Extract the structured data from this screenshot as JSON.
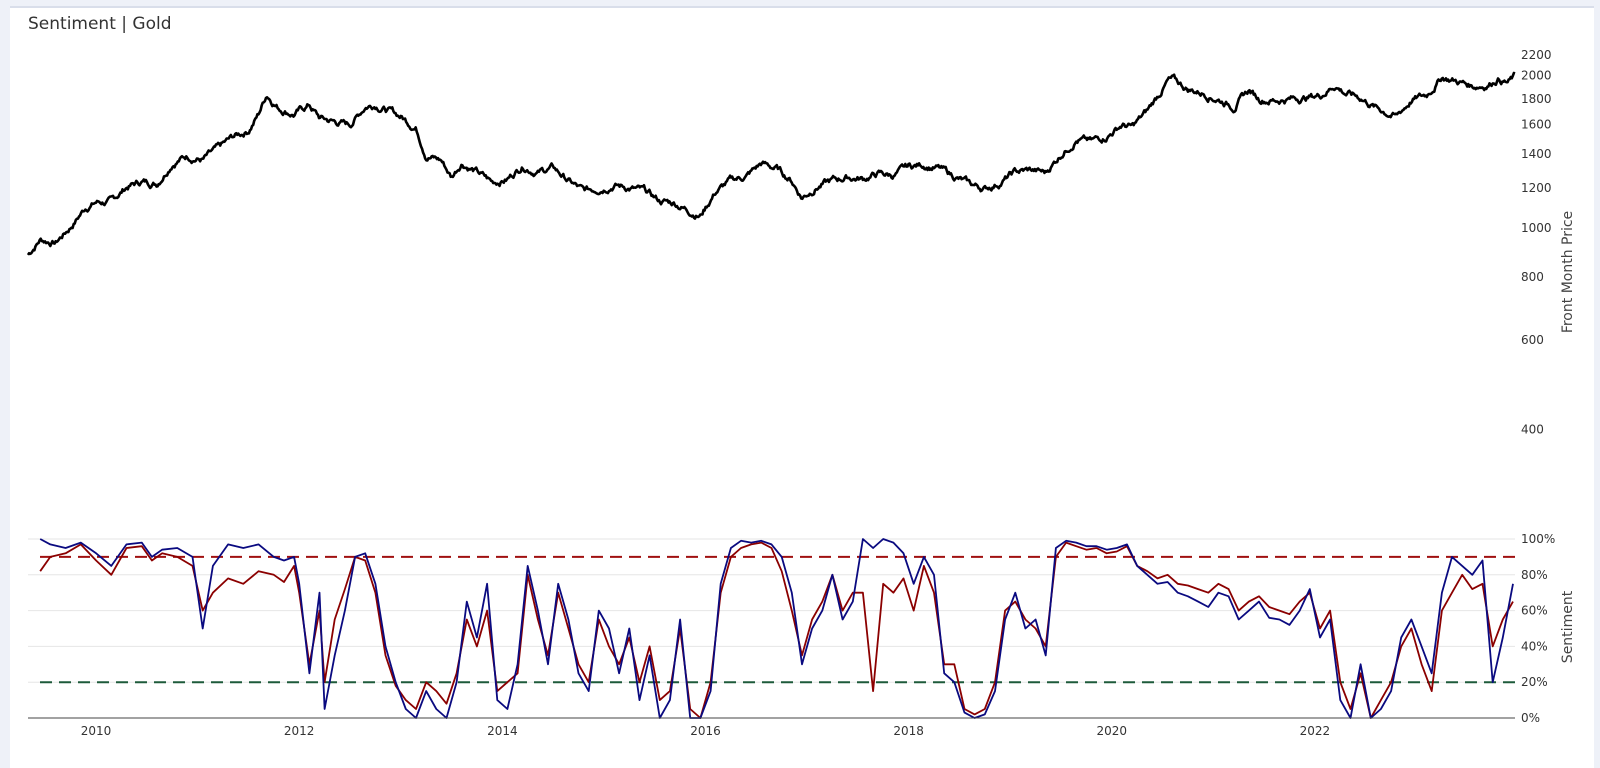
{
  "title": "Sentiment | Gold",
  "chart_data": [
    {
      "type": "line",
      "name": "price-panel",
      "ylabel": "Front Month Price",
      "yscale": "log",
      "ylim": [
        340,
        2300
      ],
      "xlim": [
        2009.33,
        2023.97
      ],
      "yticks": [
        {
          "value": 400,
          "label": "400"
        },
        {
          "value": 600,
          "label": "600"
        },
        {
          "value": 800,
          "label": "800"
        },
        {
          "value": 1000,
          "label": "1000"
        },
        {
          "value": 1200,
          "label": "1200"
        },
        {
          "value": 1400,
          "label": "1400"
        },
        {
          "value": 1600,
          "label": "1600"
        },
        {
          "value": 1800,
          "label": "1800"
        },
        {
          "value": 2000,
          "label": "2000"
        },
        {
          "value": 2200,
          "label": "2200"
        }
      ],
      "color": "#000000",
      "series": [
        {
          "x": [
            2009.33,
            2009.45,
            2009.6,
            2009.75,
            2009.9,
            2010.0,
            2010.15,
            2010.3,
            2010.45,
            2010.6,
            2010.75,
            2010.9,
            2011.05,
            2011.2,
            2011.35,
            2011.5,
            2011.6,
            2011.68,
            2011.8,
            2011.95,
            2012.1,
            2012.2,
            2012.35,
            2012.5,
            2012.65,
            2012.75,
            2012.9,
            2013.0,
            2013.15,
            2013.25,
            2013.4,
            2013.5,
            2013.6,
            2013.75,
            2013.9,
            2014.05,
            2014.2,
            2014.35,
            2014.5,
            2014.65,
            2014.8,
            2014.95,
            2015.1,
            2015.25,
            2015.4,
            2015.55,
            2015.7,
            2015.85,
            2015.95,
            2016.1,
            2016.25,
            2016.4,
            2016.55,
            2016.7,
            2016.85,
            2016.95,
            2017.1,
            2017.25,
            2017.4,
            2017.55,
            2017.7,
            2017.85,
            2018.0,
            2018.15,
            2018.3,
            2018.45,
            2018.6,
            2018.75,
            2018.9,
            2019.05,
            2019.2,
            2019.35,
            2019.5,
            2019.65,
            2019.8,
            2019.95,
            2020.1,
            2020.2,
            2020.35,
            2020.55,
            2020.6,
            2020.75,
            2020.9,
            2021.05,
            2021.2,
            2021.35,
            2021.45,
            2021.6,
            2021.75,
            2021.9,
            2022.05,
            2022.2,
            2022.3,
            2022.45,
            2022.6,
            2022.8,
            2022.95,
            2023.1,
            2023.25,
            2023.4,
            2023.55,
            2023.7,
            2023.8,
            2023.9,
            2023.97
          ],
          "values": [
            885,
            950,
            935,
            1005,
            1100,
            1125,
            1125,
            1205,
            1235,
            1225,
            1350,
            1390,
            1365,
            1430,
            1510,
            1560,
            1680,
            1840,
            1730,
            1680,
            1750,
            1650,
            1620,
            1600,
            1740,
            1760,
            1700,
            1660,
            1580,
            1400,
            1360,
            1260,
            1350,
            1290,
            1230,
            1250,
            1330,
            1290,
            1315,
            1240,
            1180,
            1200,
            1220,
            1200,
            1180,
            1130,
            1120,
            1080,
            1060,
            1180,
            1240,
            1265,
            1340,
            1310,
            1240,
            1150,
            1210,
            1240,
            1260,
            1250,
            1280,
            1270,
            1320,
            1335,
            1310,
            1265,
            1220,
            1195,
            1230,
            1290,
            1300,
            1285,
            1400,
            1500,
            1480,
            1520,
            1600,
            1580,
            1700,
            1950,
            1960,
            1880,
            1850,
            1800,
            1740,
            1870,
            1800,
            1790,
            1800,
            1810,
            1830,
            1920,
            1850,
            1810,
            1730,
            1660,
            1790,
            1830,
            1990,
            1950,
            1910,
            1920,
            1980,
            1940,
            1990
          ]
        }
      ]
    },
    {
      "type": "line",
      "name": "sentiment-panel",
      "ylabel": "Sentiment",
      "ylim": [
        0,
        100
      ],
      "xlim": [
        2009.33,
        2023.97
      ],
      "xticks": [
        {
          "value": 2010,
          "label": "2010"
        },
        {
          "value": 2012,
          "label": "2012"
        },
        {
          "value": 2014,
          "label": "2014"
        },
        {
          "value": 2016,
          "label": "2016"
        },
        {
          "value": 2018,
          "label": "2018"
        },
        {
          "value": 2020,
          "label": "2020"
        },
        {
          "value": 2022,
          "label": "2022"
        }
      ],
      "yticks": [
        {
          "value": 0,
          "label": "0%"
        },
        {
          "value": 20,
          "label": "20%"
        },
        {
          "value": 40,
          "label": "40%"
        },
        {
          "value": 60,
          "label": "60%"
        },
        {
          "value": 80,
          "label": "80%"
        },
        {
          "value": 100,
          "label": "100%"
        }
      ],
      "thresholds": [
        {
          "value": 90,
          "color": "#a01010"
        },
        {
          "value": 20,
          "color": "#1d5a3a"
        }
      ],
      "x": [
        2009.45,
        2009.55,
        2009.7,
        2009.85,
        2010.0,
        2010.15,
        2010.3,
        2010.45,
        2010.55,
        2010.65,
        2010.8,
        2010.95,
        2011.05,
        2011.15,
        2011.3,
        2011.45,
        2011.6,
        2011.75,
        2011.85,
        2011.95,
        2012.0,
        2012.1,
        2012.2,
        2012.25,
        2012.35,
        2012.45,
        2012.55,
        2012.65,
        2012.75,
        2012.85,
        2012.95,
        2013.05,
        2013.15,
        2013.25,
        2013.35,
        2013.45,
        2013.55,
        2013.65,
        2013.75,
        2013.85,
        2013.95,
        2014.05,
        2014.15,
        2014.25,
        2014.35,
        2014.45,
        2014.55,
        2014.65,
        2014.75,
        2014.85,
        2014.95,
        2015.05,
        2015.15,
        2015.25,
        2015.35,
        2015.45,
        2015.55,
        2015.65,
        2015.75,
        2015.85,
        2015.95,
        2016.05,
        2016.15,
        2016.25,
        2016.35,
        2016.45,
        2016.55,
        2016.65,
        2016.75,
        2016.85,
        2016.95,
        2017.05,
        2017.15,
        2017.25,
        2017.35,
        2017.45,
        2017.55,
        2017.65,
        2017.75,
        2017.85,
        2017.95,
        2018.05,
        2018.15,
        2018.25,
        2018.35,
        2018.45,
        2018.55,
        2018.65,
        2018.75,
        2018.85,
        2018.95,
        2019.05,
        2019.15,
        2019.25,
        2019.35,
        2019.45,
        2019.55,
        2019.65,
        2019.75,
        2019.85,
        2019.95,
        2020.05,
        2020.15,
        2020.25,
        2020.35,
        2020.45,
        2020.55,
        2020.65,
        2020.75,
        2020.85,
        2020.95,
        2021.05,
        2021.15,
        2021.25,
        2021.35,
        2021.45,
        2021.55,
        2021.65,
        2021.75,
        2021.85,
        2021.95,
        2022.05,
        2022.15,
        2022.25,
        2022.35,
        2022.45,
        2022.55,
        2022.65,
        2022.75,
        2022.85,
        2022.95,
        2023.05,
        2023.15,
        2023.25,
        2023.35,
        2023.45,
        2023.55,
        2023.65,
        2023.75,
        2023.85,
        2023.95
      ],
      "series": [
        {
          "color": "#8b0000",
          "values": [
            82,
            90,
            92,
            97,
            88,
            80,
            95,
            96,
            88,
            92,
            90,
            85,
            60,
            70,
            78,
            75,
            82,
            80,
            76,
            85,
            70,
            30,
            60,
            20,
            55,
            72,
            90,
            88,
            70,
            35,
            18,
            10,
            5,
            20,
            15,
            8,
            25,
            55,
            40,
            60,
            15,
            20,
            25,
            80,
            55,
            35,
            70,
            50,
            30,
            20,
            55,
            40,
            30,
            45,
            20,
            40,
            10,
            15,
            50,
            5,
            0,
            20,
            70,
            90,
            95,
            97,
            98,
            95,
            82,
            60,
            35,
            55,
            65,
            80,
            60,
            70,
            70,
            15,
            75,
            70,
            78,
            60,
            85,
            70,
            30,
            30,
            5,
            2,
            5,
            20,
            60,
            65,
            55,
            50,
            40,
            90,
            98,
            96,
            94,
            95,
            92,
            93,
            96,
            85,
            82,
            78,
            80,
            75,
            74,
            72,
            70,
            75,
            72,
            60,
            65,
            68,
            62,
            60,
            58,
            65,
            70,
            50,
            60,
            20,
            5,
            25,
            0,
            10,
            20,
            40,
            50,
            30,
            15,
            60,
            70,
            80,
            72,
            75,
            40,
            55,
            65
          ]
        },
        {
          "color": "#0a0a80",
          "values": [
            100,
            97,
            95,
            98,
            92,
            85,
            97,
            98,
            90,
            94,
            95,
            90,
            50,
            85,
            97,
            95,
            97,
            90,
            88,
            90,
            75,
            25,
            70,
            5,
            35,
            60,
            90,
            92,
            75,
            40,
            20,
            5,
            0,
            15,
            5,
            0,
            20,
            65,
            45,
            75,
            10,
            5,
            30,
            85,
            60,
            30,
            75,
            55,
            25,
            15,
            60,
            50,
            25,
            50,
            10,
            35,
            0,
            10,
            55,
            0,
            0,
            15,
            75,
            95,
            99,
            98,
            99,
            97,
            90,
            70,
            30,
            50,
            60,
            80,
            55,
            65,
            100,
            95,
            100,
            98,
            92,
            75,
            90,
            80,
            25,
            20,
            3,
            0,
            2,
            15,
            55,
            70,
            50,
            55,
            35,
            95,
            99,
            98,
            96,
            96,
            94,
            95,
            97,
            85,
            80,
            75,
            76,
            70,
            68,
            65,
            62,
            70,
            68,
            55,
            60,
            65,
            56,
            55,
            52,
            60,
            72,
            45,
            55,
            10,
            0,
            30,
            0,
            5,
            15,
            45,
            55,
            40,
            25,
            70,
            90,
            85,
            80,
            88,
            20,
            45,
            75
          ]
        }
      ]
    }
  ]
}
